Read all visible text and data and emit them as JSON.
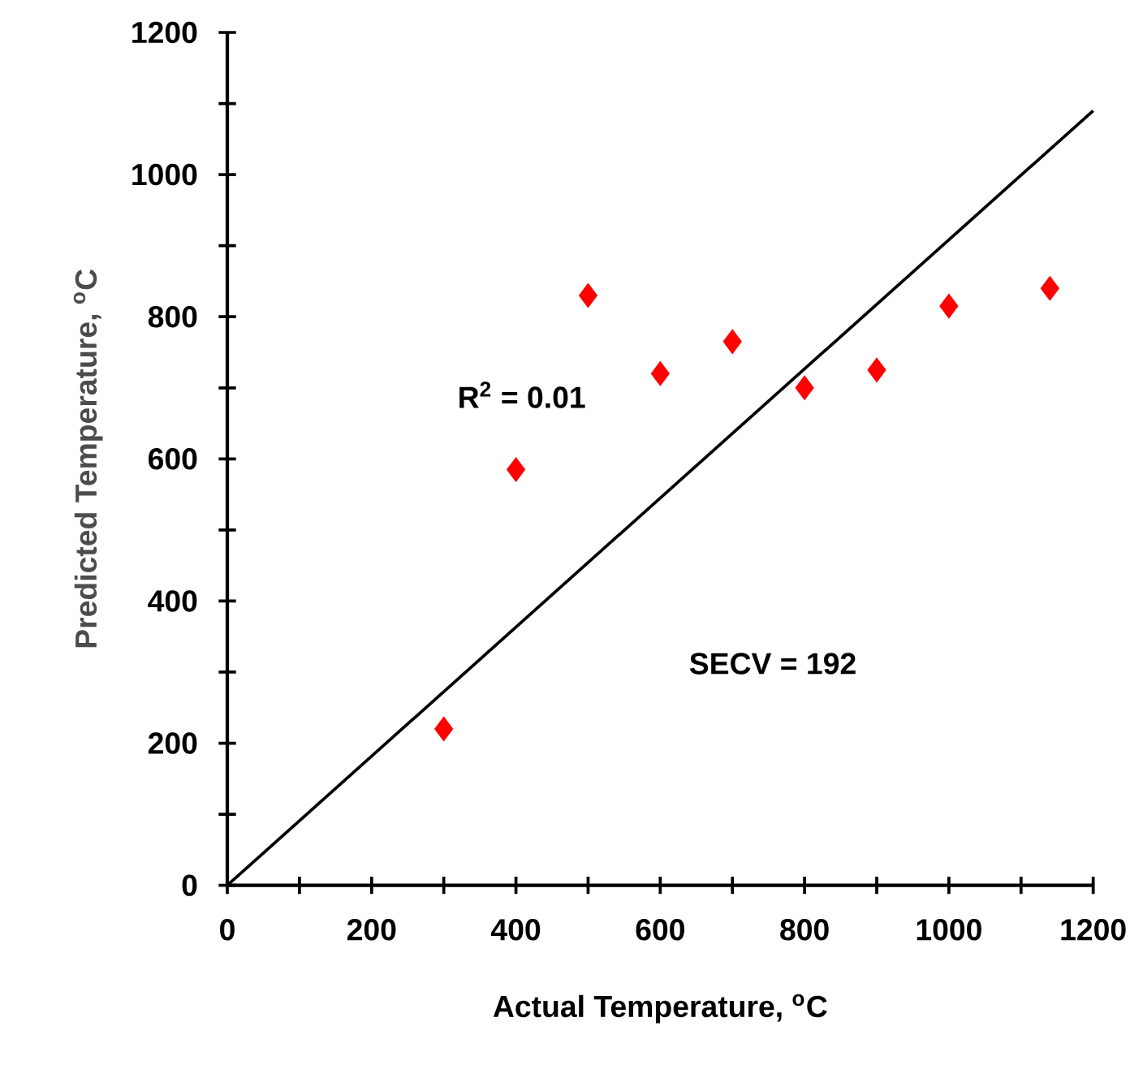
{
  "chart_data": {
    "type": "scatter",
    "xlabel": "Actual Temperature, $^{o}$C",
    "ylabel": "Predicted Temperature, $^{o}$C",
    "annotations": [
      "R$^{2}$ = 0.01",
      "SECV = 192"
    ],
    "series": [
      {
        "color": "#ff0000",
        "marker": "diamond",
        "x": [
          300,
          400,
          500,
          600,
          700,
          800,
          900,
          1000,
          1140
        ],
        "values": [
          220,
          585,
          830,
          720,
          765,
          700,
          725,
          815,
          840
        ]
      },
      {
        "type": "line",
        "color": "#000000",
        "line_style": "solid",
        "x": [
          0,
          1200
        ],
        "values": [
          0,
          1090
        ]
      }
    ],
    "xlim": [
      0,
      1200
    ],
    "ylim": [
      0,
      1200
    ],
    "xticks": [
      0,
      {
        "value": 100,
        "label": null
      },
      200,
      {
        "value": 300,
        "label": null
      },
      400,
      {
        "value": 500,
        "label": null
      },
      600,
      {
        "value": 700,
        "label": null
      },
      800,
      {
        "value": 900,
        "label": null
      },
      1000,
      {
        "value": 1100,
        "label": null
      },
      1200
    ],
    "yticks": [
      0,
      {
        "value": 100,
        "label": null
      },
      200,
      {
        "value": 300,
        "label": null
      },
      400,
      {
        "value": 500,
        "label": null
      },
      600,
      {
        "value": 700,
        "label": null
      },
      800,
      {
        "value": 900,
        "label": null
      },
      1000,
      {
        "value": 1100,
        "label": null
      },
      1200
    ],
    "grid": false
  }
}
